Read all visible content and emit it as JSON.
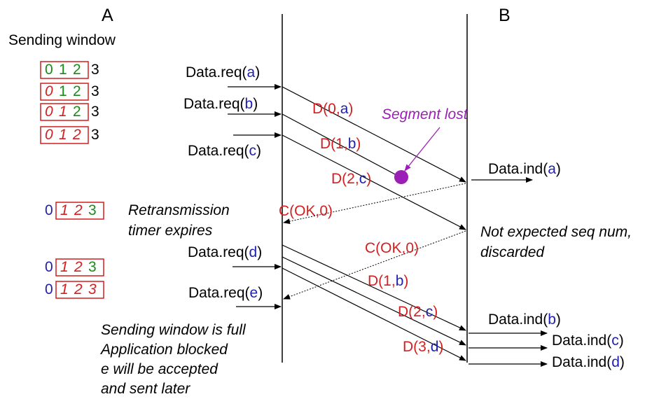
{
  "hosts": {
    "a": "A",
    "b": "B"
  },
  "window_title": "Sending window",
  "window_rows": [
    {
      "digits": [
        "0",
        "1",
        "2"
      ],
      "outside": "3",
      "italic": [
        false,
        false,
        false
      ],
      "colors": [
        "#1a8a1a",
        "#1a8a1a",
        "#1a8a1a"
      ],
      "pre": ""
    },
    {
      "digits": [
        "0",
        "1",
        "2"
      ],
      "outside": "3",
      "italic": [
        true,
        false,
        false
      ],
      "colors": [
        "#d21f1f",
        "#1a8a1a",
        "#1a8a1a"
      ],
      "pre": ""
    },
    {
      "digits": [
        "0",
        "1",
        "2"
      ],
      "outside": "3",
      "italic": [
        true,
        true,
        false
      ],
      "colors": [
        "#d21f1f",
        "#d21f1f",
        "#1a8a1a"
      ],
      "pre": ""
    },
    {
      "digits": [
        "0",
        "1",
        "2"
      ],
      "outside": "3",
      "italic": [
        true,
        true,
        true
      ],
      "colors": [
        "#d21f1f",
        "#d21f1f",
        "#d21f1f"
      ],
      "pre": ""
    },
    {
      "pre": "0",
      "digits": [
        "1",
        "2",
        "3"
      ],
      "outside": "",
      "italic": [
        true,
        true,
        false
      ],
      "colors": [
        "#d21f1f",
        "#d21f1f",
        "#1a8a1a"
      ]
    },
    {
      "pre": "0",
      "digits": [
        "1",
        "2",
        "3"
      ],
      "outside": "",
      "italic": [
        true,
        true,
        false
      ],
      "colors": [
        "#d21f1f",
        "#d21f1f",
        "#1a8a1a"
      ]
    },
    {
      "pre": "0",
      "digits": [
        "1",
        "2",
        "3"
      ],
      "outside": "",
      "italic": [
        true,
        true,
        true
      ],
      "colors": [
        "#d21f1f",
        "#d21f1f",
        "#d21f1f"
      ]
    }
  ],
  "requests": [
    {
      "prefix": "Data.req(",
      "arg": "a",
      "suffix": ")"
    },
    {
      "prefix": "Data.req(",
      "arg": "b",
      "suffix": ")"
    },
    {
      "prefix": "Data.req(",
      "arg": "c",
      "suffix": ")"
    },
    {
      "prefix": "Data.req(",
      "arg": "d",
      "suffix": ")"
    },
    {
      "prefix": "Data.req(",
      "arg": "e",
      "suffix": ")"
    }
  ],
  "segments": [
    {
      "num": "D(0,",
      "arg": "a",
      "end": ")"
    },
    {
      "num": "D(1,",
      "arg": "b",
      "end": ")"
    },
    {
      "num": "D(2,",
      "arg": "c",
      "end": ")"
    },
    {
      "num": "D(1,",
      "arg": "b",
      "end": ")"
    },
    {
      "num": "D(2,",
      "arg": "c",
      "end": ")"
    },
    {
      "num": "D(3,",
      "arg": "d",
      "end": ")"
    }
  ],
  "acks": [
    "C(OK,0)",
    "C(OK,0)"
  ],
  "indications": [
    {
      "prefix": "Data.ind(",
      "arg": "a",
      "suffix": ")"
    },
    {
      "prefix": "Data.ind(",
      "arg": "b",
      "suffix": ")"
    },
    {
      "prefix": "Data.ind(",
      "arg": "c",
      "suffix": ")"
    },
    {
      "prefix": "Data.ind(",
      "arg": "d",
      "suffix": ")"
    }
  ],
  "notes": {
    "segment_lost": "Segment lost",
    "timer_line1": "Retransmission",
    "timer_line2": "timer expires",
    "discard_line1": "Not expected seq num,",
    "discard_line2": "discarded",
    "full_line1": "Sending window is full",
    "full_line2": "Application blocked",
    "full_line3": "e will be accepted",
    "full_line4": "and sent later"
  },
  "colors": {
    "seq": "#d21f1f",
    "arg": "#1f1fb0",
    "inside": "#1a8a1a",
    "lost": "#9b1fb5",
    "box": "#d21f1f",
    "line": "#000000"
  }
}
